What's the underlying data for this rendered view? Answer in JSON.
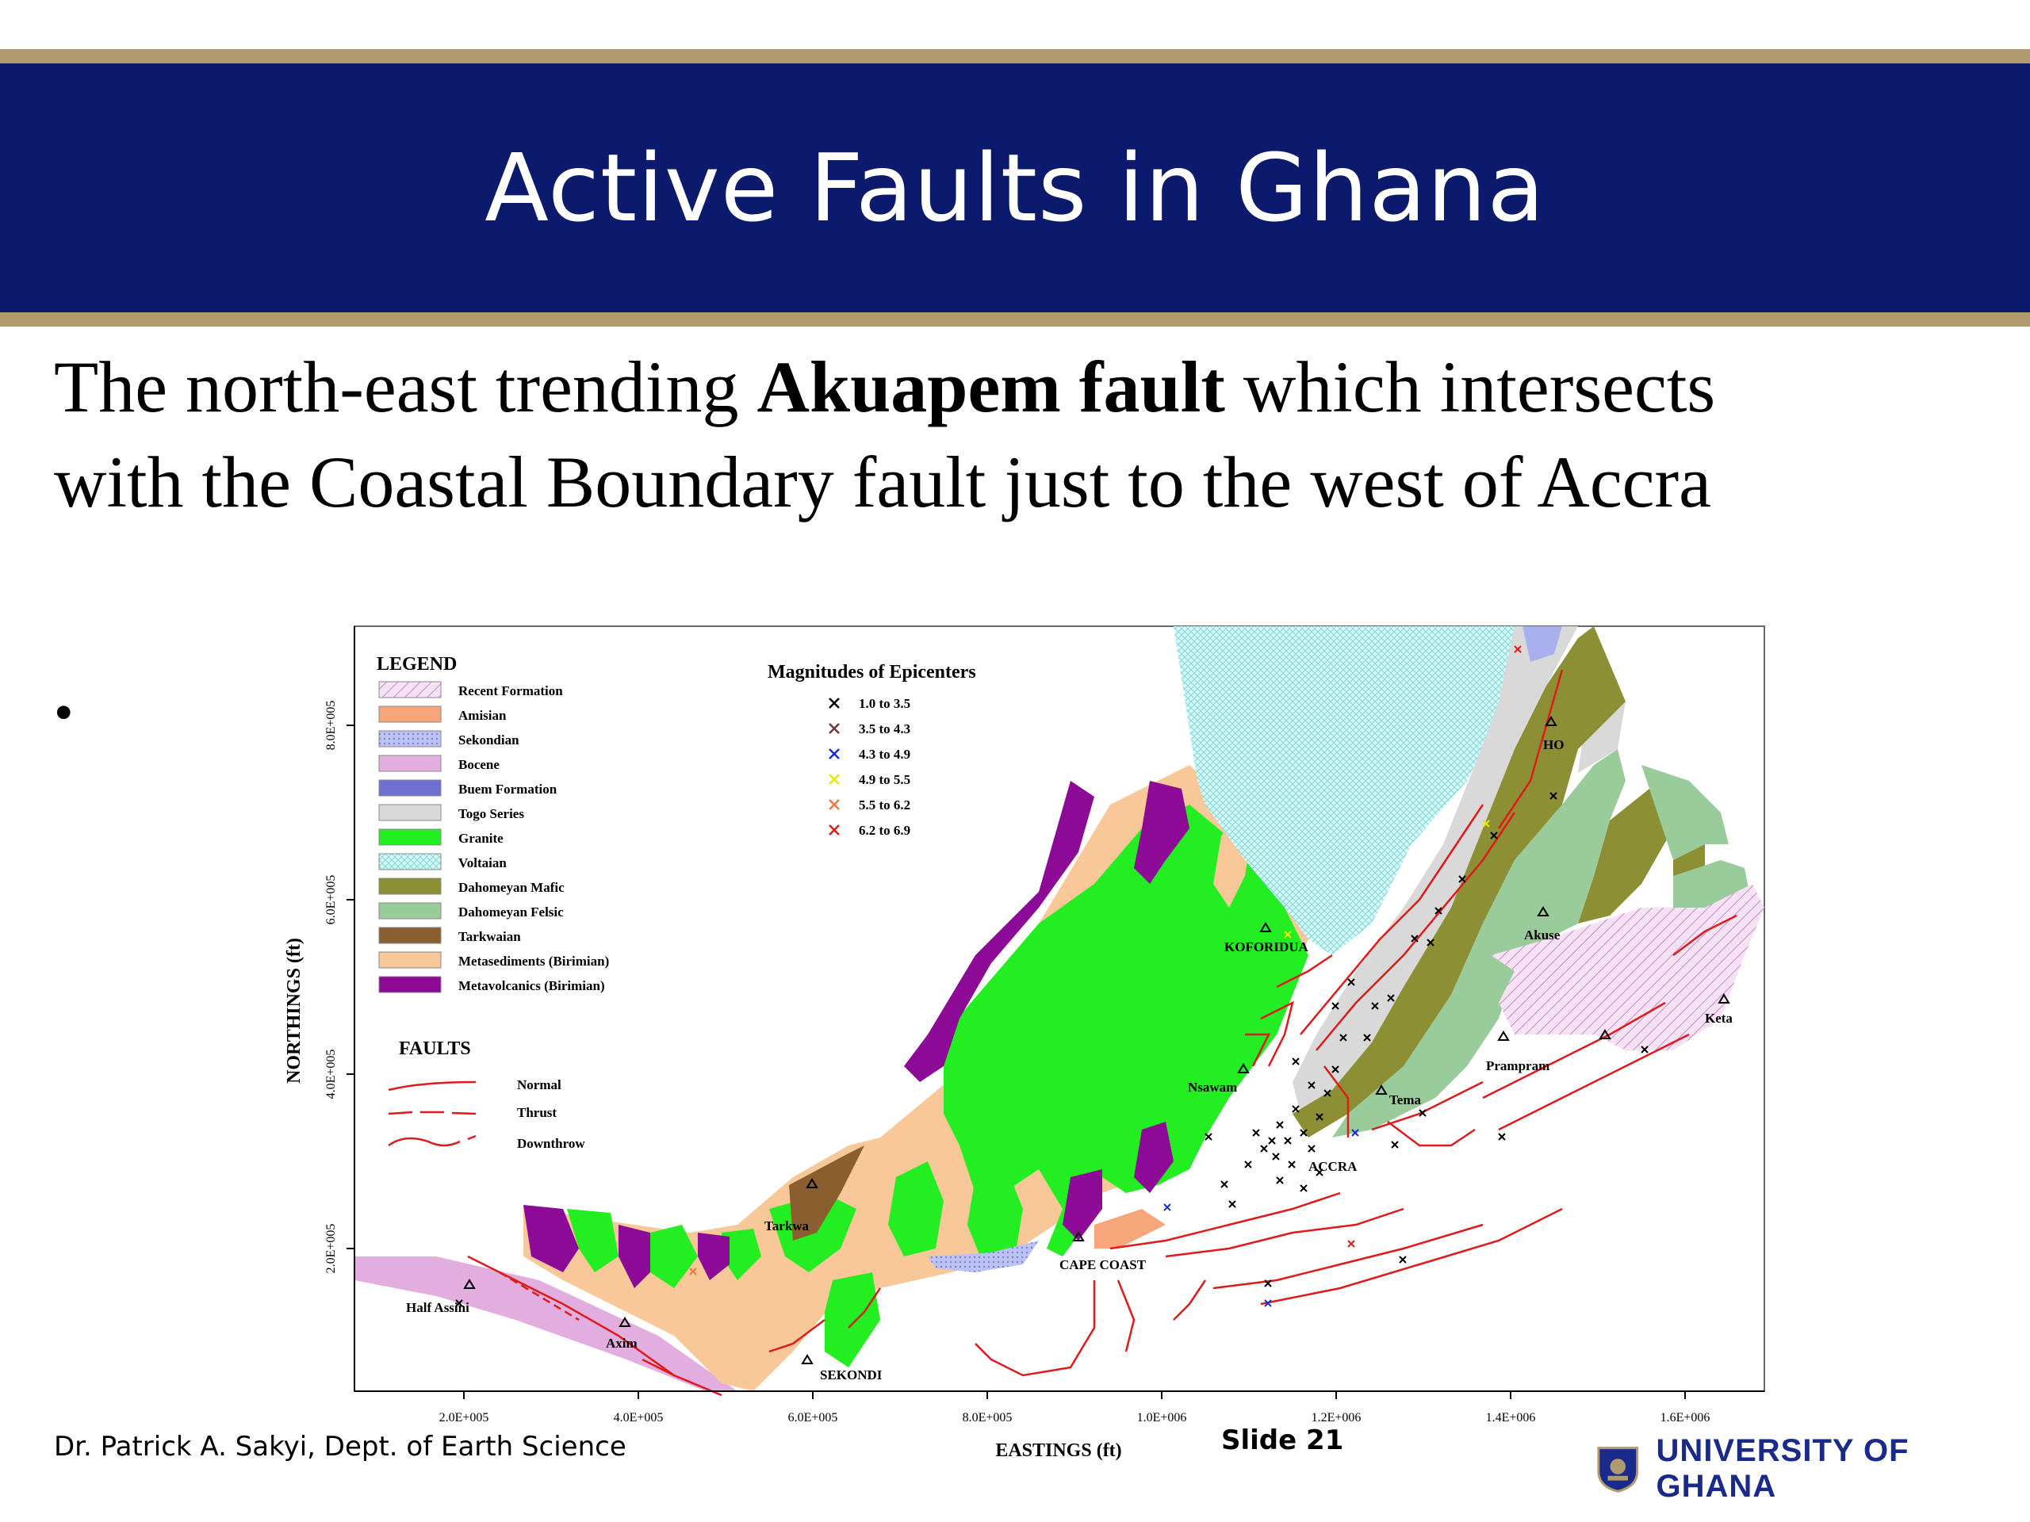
{
  "slide": {
    "title": "Active Faults in Ghana",
    "body_part1": "The north-east trending ",
    "body_bold": "Akuapem fault",
    "body_part2": " which intersects with the Coastal Boundary fault just to the west of Accra",
    "bullet": "•",
    "footer_author": "Dr. Patrick A. Sakyi, Dept. of Earth Science",
    "slide_number": "Slide 21",
    "university": "UNIVERSITY OF GHANA"
  },
  "map": {
    "legend_title": "LEGEND",
    "legend": [
      {
        "label": "Recent Formation",
        "color": "#f0d6ee",
        "pattern": "hatch"
      },
      {
        "label": "Amisian",
        "color": "#f6a67a"
      },
      {
        "label": "Sekondian",
        "color": "#a8b0ee",
        "pattern": "dots"
      },
      {
        "label": "Bocene",
        "color": "#e2aee0"
      },
      {
        "label": "Buem Formation",
        "color": "#6f6fd0"
      },
      {
        "label": "Togo Series",
        "color": "#d9d9d9"
      },
      {
        "label": "Granite",
        "color": "#22ee22"
      },
      {
        "label": "Voltaian",
        "color": "#b8f2f2",
        "pattern": "dots"
      },
      {
        "label": "Dahomeyan Mafic",
        "color": "#8d8f35"
      },
      {
        "label": "Dahomeyan Felsic",
        "color": "#9acb9a"
      },
      {
        "label": "Tarkwaian",
        "color": "#8b5e30"
      },
      {
        "label": "Metasediments (Birimian)",
        "color": "#f8c898"
      },
      {
        "label": "Metavolcanics (Birimian)",
        "color": "#8c0a96"
      }
    ],
    "magnitudes_title": "Magnitudes of Epicenters",
    "magnitudes": [
      {
        "label": "1.0  to  3.5",
        "color": "#000000"
      },
      {
        "label": "3.5  to  4.3",
        "color": "#6b3a3a"
      },
      {
        "label": "4.3  to  4.9",
        "color": "#1a2ae0"
      },
      {
        "label": "4.9  to  5.5",
        "color": "#e8e800"
      },
      {
        "label": "5.5  to  6.2",
        "color": "#f07840"
      },
      {
        "label": "6.2  to  6.9",
        "color": "#e01a1a"
      }
    ],
    "faults_title": "FAULTS",
    "faults": [
      "Normal",
      "Thrust",
      "Downthrow"
    ],
    "x_axis_title": "EASTINGS (ft)",
    "y_axis_title": "NORTHINGS (ft)",
    "x_ticks": [
      "2.0E+005",
      "4.0E+005",
      "6.0E+005",
      "8.0E+005",
      "1.0E+006",
      "1.2E+006",
      "1.4E+006",
      "1.6E+006"
    ],
    "y_ticks": [
      "2.0E+005",
      "4.0E+005",
      "6.0E+005",
      "8.0E+005"
    ],
    "places": [
      "HO",
      "KOFORIDUA",
      "Akuse",
      "Keta",
      "Prampram",
      "Nsawam",
      "Tema",
      "ACCRA",
      "Tarkwa",
      "CAPE COAST",
      "Half Assini",
      "Axim",
      "SEKONDI"
    ],
    "fault_color": "#e01a1a"
  }
}
